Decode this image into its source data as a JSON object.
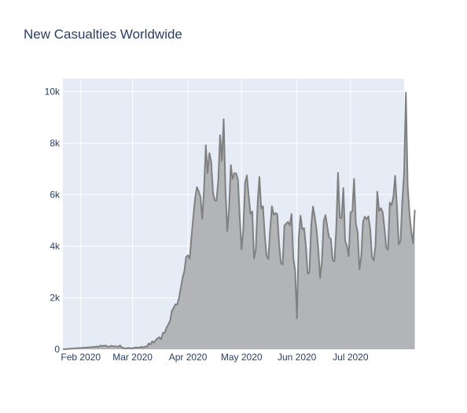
{
  "chart_data": {
    "type": "area",
    "title": "New Casualties Worldwide",
    "xlabel": "",
    "ylabel": "",
    "x_ticks": [
      "Feb 2020",
      "Mar 2020",
      "Apr 2020",
      "May 2020",
      "Jun 2020",
      "Jul 2020"
    ],
    "y_ticks": [
      "0",
      "2k",
      "4k",
      "6k",
      "8k",
      "10k"
    ],
    "y_tick_values": [
      0,
      2000,
      4000,
      6000,
      8000,
      10000
    ],
    "ylim": [
      0,
      10500
    ],
    "xlim": [
      "2020-01-22",
      "2020-07-31"
    ],
    "grid": true,
    "legend": "none",
    "colors": {
      "plot_bg": "#e5ecf6",
      "grid": "#ffffff",
      "line": "#808080",
      "fill": "#b2b4b7",
      "text": "#2a3f5f"
    },
    "series": [
      {
        "start_date": "2020-01-22",
        "values": [
          17,
          0,
          8,
          15,
          24,
          26,
          26,
          38,
          42,
          46,
          45,
          57,
          64,
          66,
          72,
          73,
          86,
          89,
          97,
          108,
          97,
          146,
          121,
          143,
          142,
          105,
          98,
          136,
          115,
          118,
          109,
          97,
          150,
          71,
          52,
          29,
          44,
          47,
          35,
          42,
          60,
          70,
          60,
          73,
          94,
          69,
          106,
          96,
          226,
          189,
          310,
          261,
          360,
          427,
          464,
          385,
          641,
          644,
          836,
          962,
          1112,
          1491,
          1610,
          1748,
          1736,
          1992,
          2392,
          2769,
          3035,
          3585,
          3647,
          3509,
          4384,
          5135,
          5848,
          6290,
          6136,
          5914,
          5060,
          6196,
          7917,
          6834,
          7612,
          7279,
          6102,
          5770,
          5774,
          6584,
          8306,
          7318,
          8926,
          6231,
          4586,
          5457,
          7148,
          6609,
          6836,
          6820,
          6557,
          5110,
          3882,
          4676,
          6466,
          6747,
          5962,
          5248,
          5349,
          3519,
          3881,
          5650,
          6683,
          5468,
          5553,
          4425,
          3637,
          3496,
          4641,
          5553,
          5217,
          5285,
          5247,
          4118,
          3340,
          3291,
          4794,
          4879,
          4943,
          4815,
          5250,
          3519,
          3060,
          1204,
          4271,
          5190,
          4652,
          4704,
          4012,
          2935,
          2985,
          4799,
          5541,
          5132,
          4633,
          3829,
          2766,
          3432,
          4976,
          5207,
          4758,
          4337,
          4281,
          3461,
          3408,
          4645,
          6845,
          5114,
          5081,
          6257,
          4207,
          4004,
          3612,
          5319,
          5339,
          6608,
          4869,
          4541,
          3102,
          3601,
          4951,
          5145,
          5047,
          5162,
          4689,
          3578,
          3449,
          4043,
          6116,
          5364,
          5479,
          5324,
          4700,
          3965,
          3857,
          5692,
          5593,
          5926,
          6736,
          5505,
          4070,
          4200,
          5771,
          6851,
          9958,
          6350,
          5270,
          4570,
          4115,
          5408
        ]
      }
    ]
  }
}
